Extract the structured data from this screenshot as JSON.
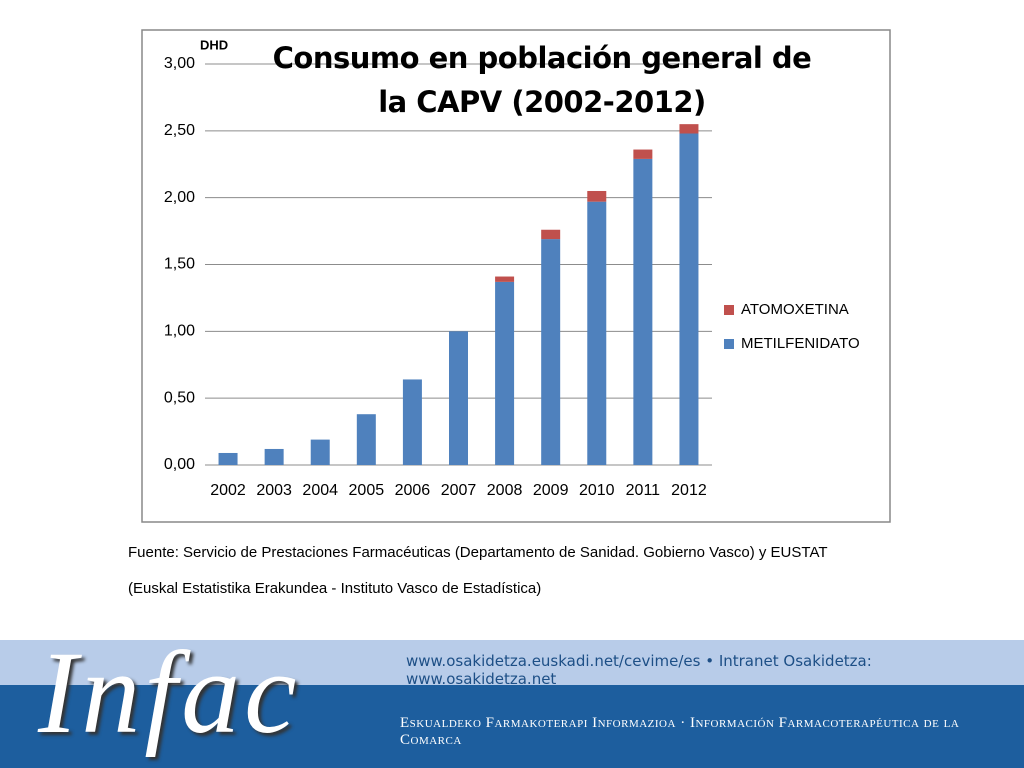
{
  "chart_data": {
    "type": "bar",
    "stacked": true,
    "title": "Consumo en población general de la CAPV (2002-2012)",
    "y_label": "DHD",
    "categories": [
      "2002",
      "2003",
      "2004",
      "2005",
      "2006",
      "2007",
      "2008",
      "2009",
      "2010",
      "2011",
      "2012"
    ],
    "series": [
      {
        "name": "METILFENIDATO",
        "color": "#4f81bd",
        "values": [
          0.09,
          0.12,
          0.19,
          0.38,
          0.64,
          1.0,
          1.37,
          1.69,
          1.97,
          2.29,
          2.48
        ]
      },
      {
        "name": "ATOMOXETINA",
        "color": "#c0504d",
        "values": [
          0,
          0,
          0,
          0,
          0,
          0,
          0.04,
          0.07,
          0.08,
          0.07,
          0.07
        ]
      }
    ],
    "ylim": [
      0,
      3
    ],
    "yticks": [
      {
        "value": 0,
        "label": "0,00"
      },
      {
        "value": 0.5,
        "label": "0,50"
      },
      {
        "value": 1,
        "label": "1,00"
      },
      {
        "value": 1.5,
        "label": "1,50"
      },
      {
        "value": 2,
        "label": "2,00"
      },
      {
        "value": 2.5,
        "label": "2,50"
      },
      {
        "value": 3,
        "label": "3,00"
      }
    ],
    "grid": true,
    "legend": "right"
  },
  "source": [
    "Fuente: Servicio de Prestaciones Farmacéuticas (Departamento de Sanidad. Gobierno Vasco) y EUSTAT",
    "(Euskal Estatistika Erakundea - Instituto Vasco de Estadística)"
  ],
  "footer": {
    "logo": "Infac",
    "links": "www.osakidetza.euskadi.net/cevime/es  •  Intranet Osakidetza: www.osakidetza.net",
    "tagline": "Eskualdeko Farmakoterapi Informazioa  ·  Información Farmacoterapéutica de la Comarca"
  }
}
